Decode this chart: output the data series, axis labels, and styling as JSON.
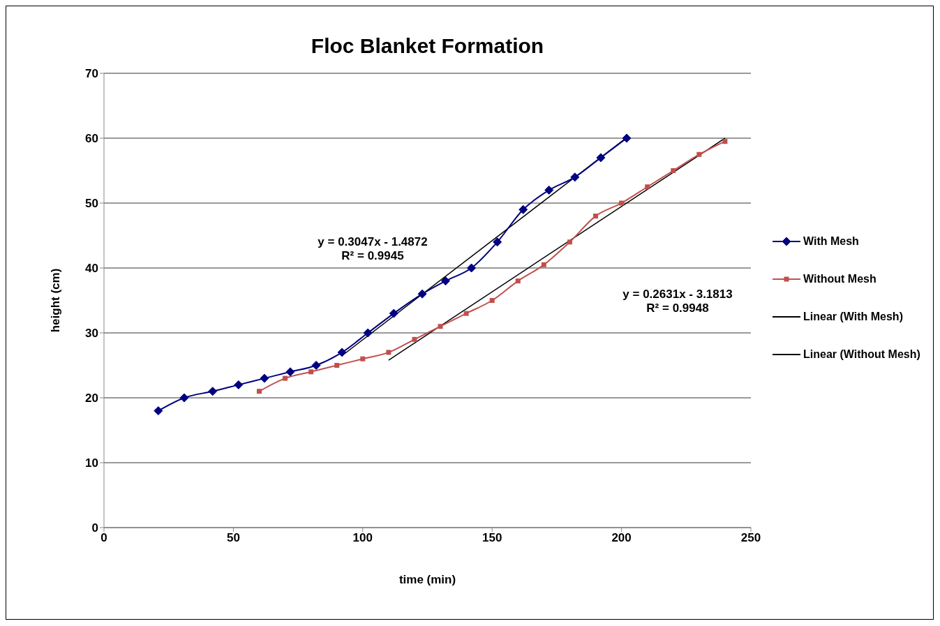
{
  "chart_data": {
    "type": "line",
    "title": "Floc Blanket Formation",
    "xlabel": "time (min)",
    "ylabel": "height (cm)",
    "xlim": [
      0,
      250
    ],
    "xticks": [
      0,
      50,
      100,
      150,
      200,
      250
    ],
    "ylim": [
      0,
      70
    ],
    "yticks": [
      0,
      10,
      20,
      30,
      40,
      50,
      60,
      70
    ],
    "grid": "y",
    "legend": "right",
    "line_style": "solid",
    "series": [
      {
        "name": "With Mesh",
        "color": "#000080",
        "marker": "diamond",
        "x": [
          21,
          31,
          42,
          52,
          62,
          72,
          82,
          92,
          102,
          112,
          123,
          132,
          142,
          152,
          162,
          172,
          182,
          192,
          202
        ],
        "values": [
          18,
          20,
          21,
          22,
          23,
          24,
          25,
          27,
          30,
          33,
          36,
          38,
          40,
          44,
          49,
          52,
          54,
          57,
          60
        ]
      },
      {
        "name": "Without Mesh",
        "color": "#c0504d",
        "marker": "square",
        "x": [
          60,
          70,
          80,
          90,
          100,
          110,
          120,
          130,
          140,
          150,
          160,
          170,
          180,
          190,
          200,
          210,
          220,
          230,
          240
        ],
        "values": [
          21,
          23,
          24,
          25,
          26,
          27,
          29,
          31,
          33,
          35,
          38,
          40.5,
          44,
          48,
          50,
          52.5,
          55,
          57.5,
          59.5
        ]
      },
      {
        "name": "Linear (With Mesh)",
        "color": "#000000",
        "marker": "none",
        "x": [
          92,
          202
        ],
        "values": [
          26.5,
          60.1
        ]
      },
      {
        "name": "Linear (Without Mesh)",
        "color": "#000000",
        "marker": "none",
        "x": [
          110,
          240
        ],
        "values": [
          25.8,
          60
        ]
      }
    ],
    "annotations": [
      "y = 0.3047x - 1.4872",
      "R² = 0.9945",
      "y = 0.2631x - 3.1813",
      "R² = 0.9948"
    ]
  }
}
